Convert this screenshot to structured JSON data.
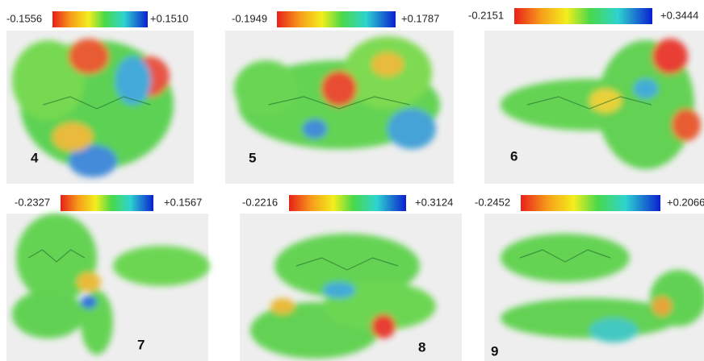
{
  "panels": [
    {
      "min_label": "-0.1556",
      "max_label": "+0.1510",
      "number": "4"
    },
    {
      "min_label": "-0.1949",
      "max_label": "+0.1787",
      "number": "5"
    },
    {
      "min_label": "-0.2151",
      "max_label": "+0.3444",
      "number": "6"
    },
    {
      "min_label": "-0.2327",
      "max_label": "+0.1567",
      "number": "7"
    },
    {
      "min_label": "-0.2216",
      "max_label": "+0.3124",
      "number": "8"
    },
    {
      "min_label": "-0.2452",
      "max_label": "+0.2066",
      "number": "9"
    }
  ]
}
